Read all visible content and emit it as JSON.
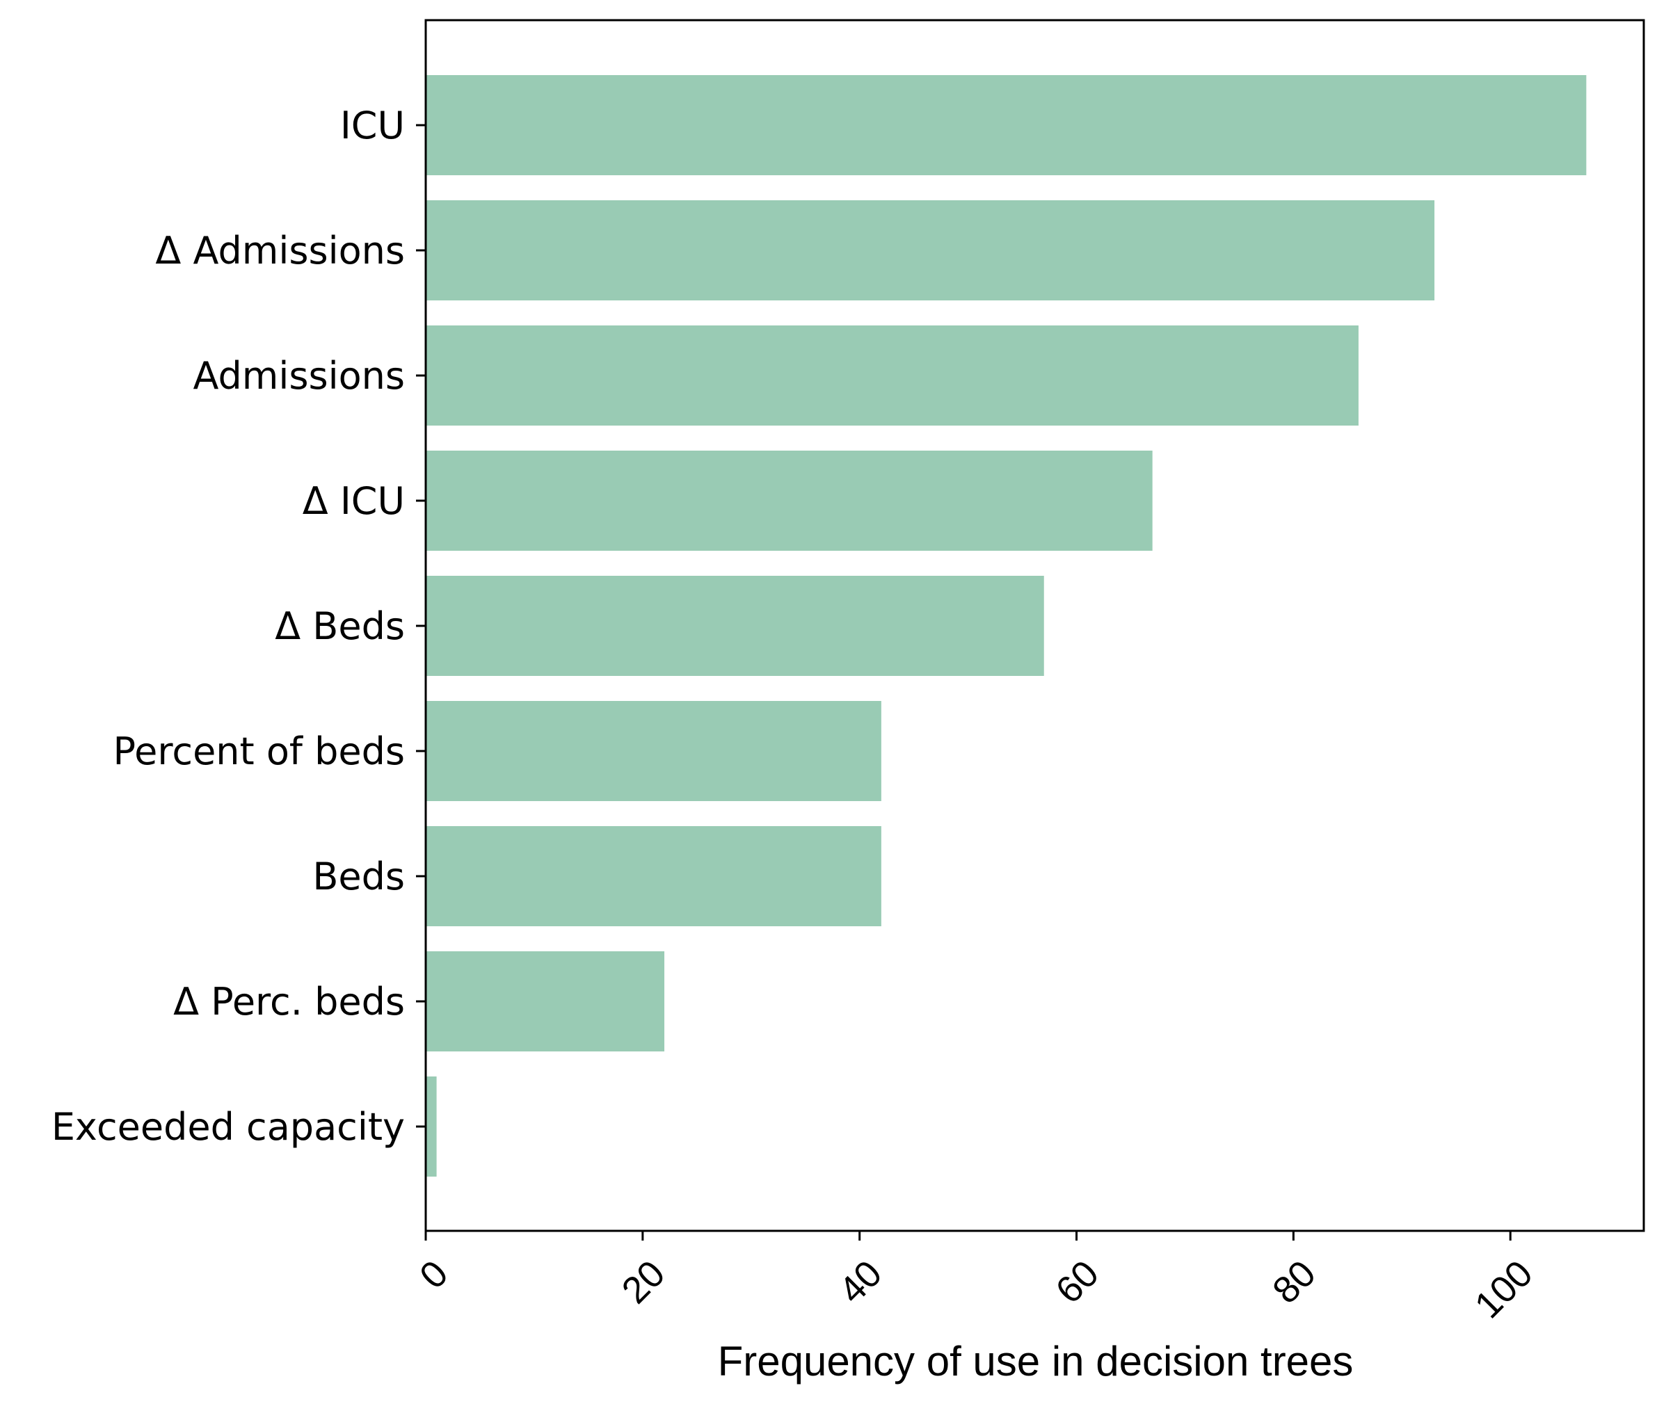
{
  "chart_data": {
    "type": "bar",
    "orientation": "horizontal",
    "categories": [
      "ICU",
      "Δ Admissions",
      "Admissions",
      "Δ ICU",
      "Δ Beds",
      "Percent of beds",
      "Beds",
      "Δ Perc. beds",
      "Exceeded capacity"
    ],
    "values": [
      107,
      93,
      86,
      67,
      57,
      42,
      42,
      22,
      1
    ],
    "title": "",
    "xlabel": "Frequency of use in decision trees",
    "ylabel": "",
    "xlim": [
      0,
      112.3
    ],
    "xticks": [
      0,
      20,
      40,
      60,
      80,
      100
    ],
    "xtick_labels": [
      "0",
      "20",
      "40",
      "60",
      "80",
      "100"
    ],
    "grid": false,
    "bar_color": "#99cbb4"
  }
}
